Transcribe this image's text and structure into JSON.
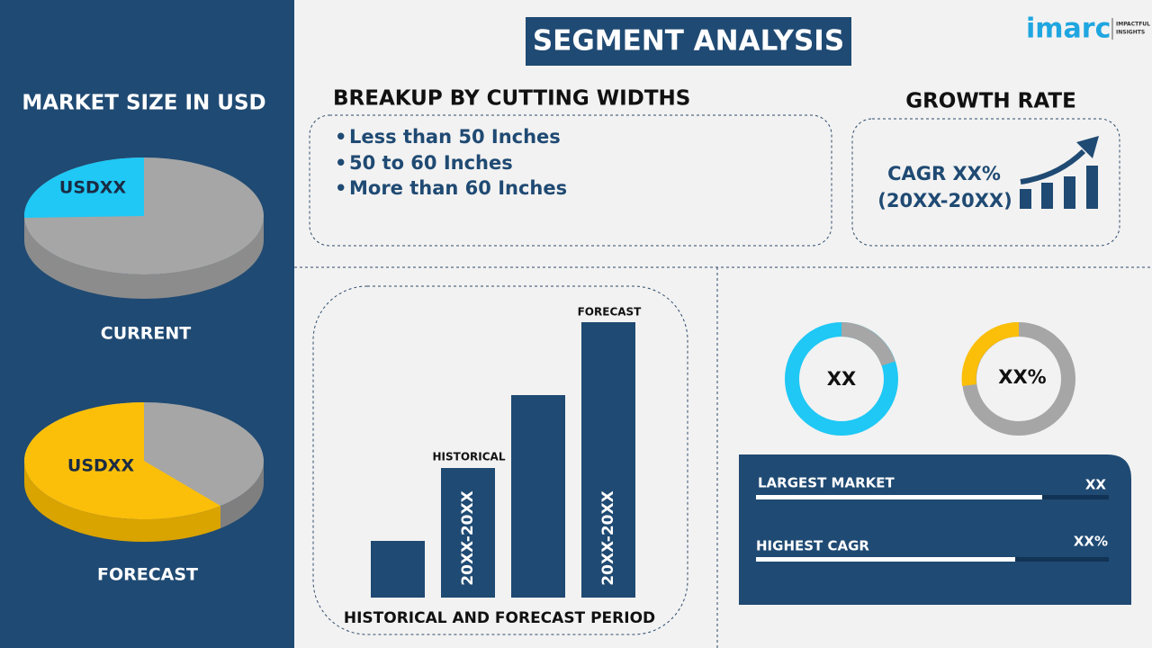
{
  "logo": {
    "brand": "imarc",
    "tagline": [
      "IMPACTFUL",
      "INSIGHTS"
    ]
  },
  "sidebar": {
    "title": "MARKET SIZE IN USD",
    "current": {
      "value": "USDXX",
      "label": "CURRENT"
    },
    "forecast": {
      "value": "USDXX",
      "label": "FORECAST"
    }
  },
  "header": {
    "title": "SEGMENT ANALYSIS"
  },
  "breakup": {
    "title": "BREAKUP BY CUTTING WIDTHS",
    "items": [
      "Less than 50 Inches",
      "50 to 60 Inches",
      "More than 60 Inches"
    ]
  },
  "growth": {
    "title": "GROWTH RATE",
    "cagr": "CAGR XX%",
    "period": "(20XX-20XX)"
  },
  "timeline": {
    "historical": "HISTORICAL",
    "forecast": "FORECAST",
    "historical_period": "20XX-20XX",
    "forecast_period": "20XX-20XX",
    "caption": "HISTORICAL AND FORECAST PERIOD"
  },
  "donuts": [
    "XX",
    "XX%"
  ],
  "stats": [
    {
      "label": "LARGEST MARKET",
      "value": "XX"
    },
    {
      "label": "HIGHEST CAGR",
      "value": "XX%"
    }
  ]
}
